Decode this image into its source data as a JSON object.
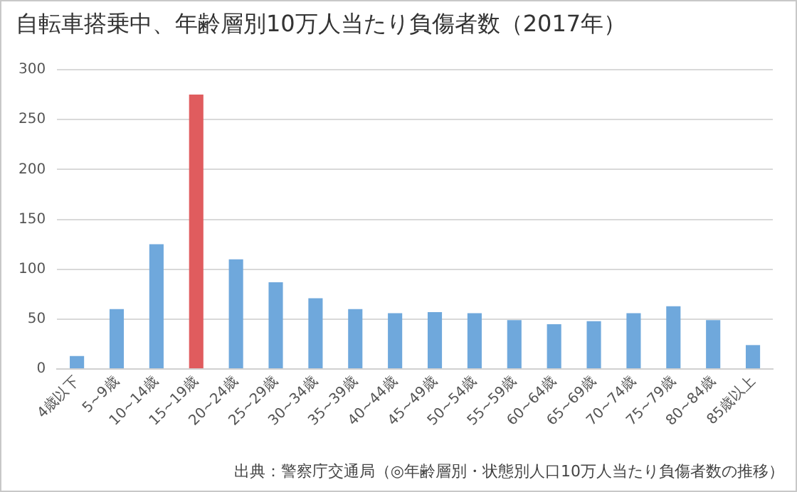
{
  "chart_data": {
    "type": "bar",
    "title": "自転車搭乗中、年齢層別10万人当たり負傷者数（2017年）",
    "categories": [
      "4歳以下",
      "5~9歳",
      "10~14歳",
      "15~19歳",
      "20~24歳",
      "25~29歳",
      "30~34歳",
      "35~39歳",
      "40~44歳",
      "45~49歳",
      "50~54歳",
      "55~59歳",
      "60~64歳",
      "65~69歳",
      "70~74歳",
      "75~79歳",
      "80~84歳",
      "85歳以上"
    ],
    "values": [
      13,
      60,
      125,
      275,
      110,
      87,
      71,
      60,
      56,
      57,
      56,
      49,
      45,
      48,
      56,
      63,
      49,
      24
    ],
    "colors": [
      "#6fa8dc",
      "#6fa8dc",
      "#6fa8dc",
      "#e05c5e",
      "#6fa8dc",
      "#6fa8dc",
      "#6fa8dc",
      "#6fa8dc",
      "#6fa8dc",
      "#6fa8dc",
      "#6fa8dc",
      "#6fa8dc",
      "#6fa8dc",
      "#6fa8dc",
      "#6fa8dc",
      "#6fa8dc",
      "#6fa8dc",
      "#6fa8dc"
    ],
    "ylim": [
      0,
      300
    ],
    "yticks": [
      0,
      50,
      100,
      150,
      200,
      250,
      300
    ],
    "grid": "y",
    "annotations": [
      "出典：警察庁交通局（◎年齢層別・状態別人口10万人当たり負傷者数の推移）"
    ]
  }
}
